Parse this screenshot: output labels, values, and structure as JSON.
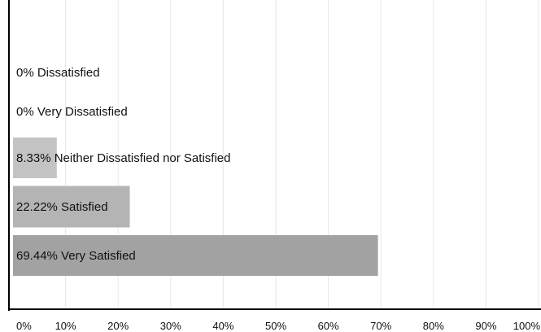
{
  "chart_data": {
    "type": "bar",
    "orientation": "horizontal",
    "categories": [
      "Dissatisfied",
      "Very Dissatisfied",
      "Neither Dissatisfied nor Satisfied",
      "Satisfied",
      "Very Satisfied"
    ],
    "values": [
      0,
      0,
      8.33,
      22.22,
      69.44
    ],
    "data_labels": [
      "0% Dissatisfied",
      "0% Very Dissatisfied",
      "8.33% Neither Dissatisfied nor Satisfied",
      "22.22% Satisfied",
      "69.44% Very Satisfied"
    ],
    "xlim": [
      0,
      100
    ],
    "x_ticks": [
      0,
      10,
      20,
      30,
      40,
      50,
      60,
      70,
      80,
      90,
      100
    ],
    "x_tick_labels": [
      "0%",
      "10%",
      "20%",
      "30%",
      "40%",
      "50%",
      "60%",
      "70%",
      "80%",
      "90%",
      "100%"
    ],
    "grid": "vertical",
    "legend": "none",
    "title": "",
    "xlabel": "",
    "ylabel": "",
    "colors": {
      "Dissatisfied": "#cfcfcf",
      "Very Dissatisfied": "#cfcfcf",
      "Neither Dissatisfied nor Satisfied": "#c3c3c3",
      "Satisfied": "#b4b4b4",
      "Very Satisfied": "#a2a2a2",
      "gridline": "#e6e6e6",
      "axis": "#000000"
    }
  }
}
